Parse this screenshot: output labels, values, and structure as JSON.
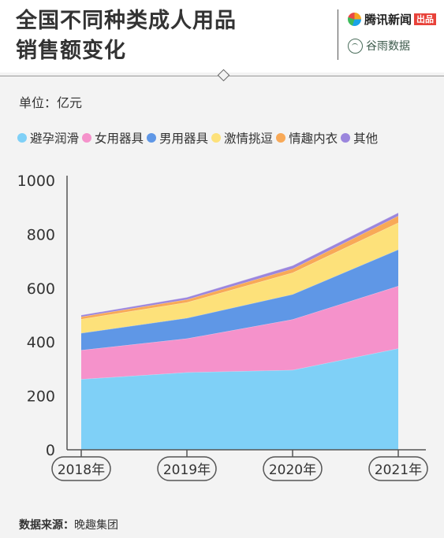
{
  "header": {
    "title_lines": [
      "全国不同种类成人用品",
      "销售额变化"
    ],
    "brand1": {
      "name": "腾讯新闻",
      "badge": "出品"
    },
    "brand2": {
      "name": "谷雨数据"
    }
  },
  "unit_label": "单位：亿元",
  "source": {
    "label": "数据来源：",
    "value": "晚趣集团"
  },
  "colors": {
    "background": "#f3f3f3",
    "header": "#ffffff"
  },
  "chart_data": {
    "type": "area",
    "stacked": true,
    "categories": [
      "2018年",
      "2019年",
      "2020年",
      "2021年"
    ],
    "ylim": [
      0,
      1000
    ],
    "yticks": [
      0,
      200,
      400,
      600,
      800,
      1000
    ],
    "grid": false,
    "legend_position": "top",
    "series": [
      {
        "name": "避孕润滑",
        "color": "#7fd0f7",
        "values": [
          262,
          287,
          296,
          376
        ]
      },
      {
        "name": "女用器具",
        "color": "#f592cb",
        "values": [
          108,
          126,
          188,
          232
        ]
      },
      {
        "name": "男用器具",
        "color": "#5f97e6",
        "values": [
          63,
          76,
          93,
          135
        ]
      },
      {
        "name": "激情挑逗",
        "color": "#fde17a",
        "values": [
          52,
          58,
          80,
          100
        ]
      },
      {
        "name": "情趣内衣",
        "color": "#f8a957",
        "values": [
          9,
          11,
          15,
          25
        ]
      },
      {
        "name": "其他",
        "color": "#9b86dd",
        "values": [
          6,
          8,
          12,
          12
        ]
      }
    ]
  }
}
